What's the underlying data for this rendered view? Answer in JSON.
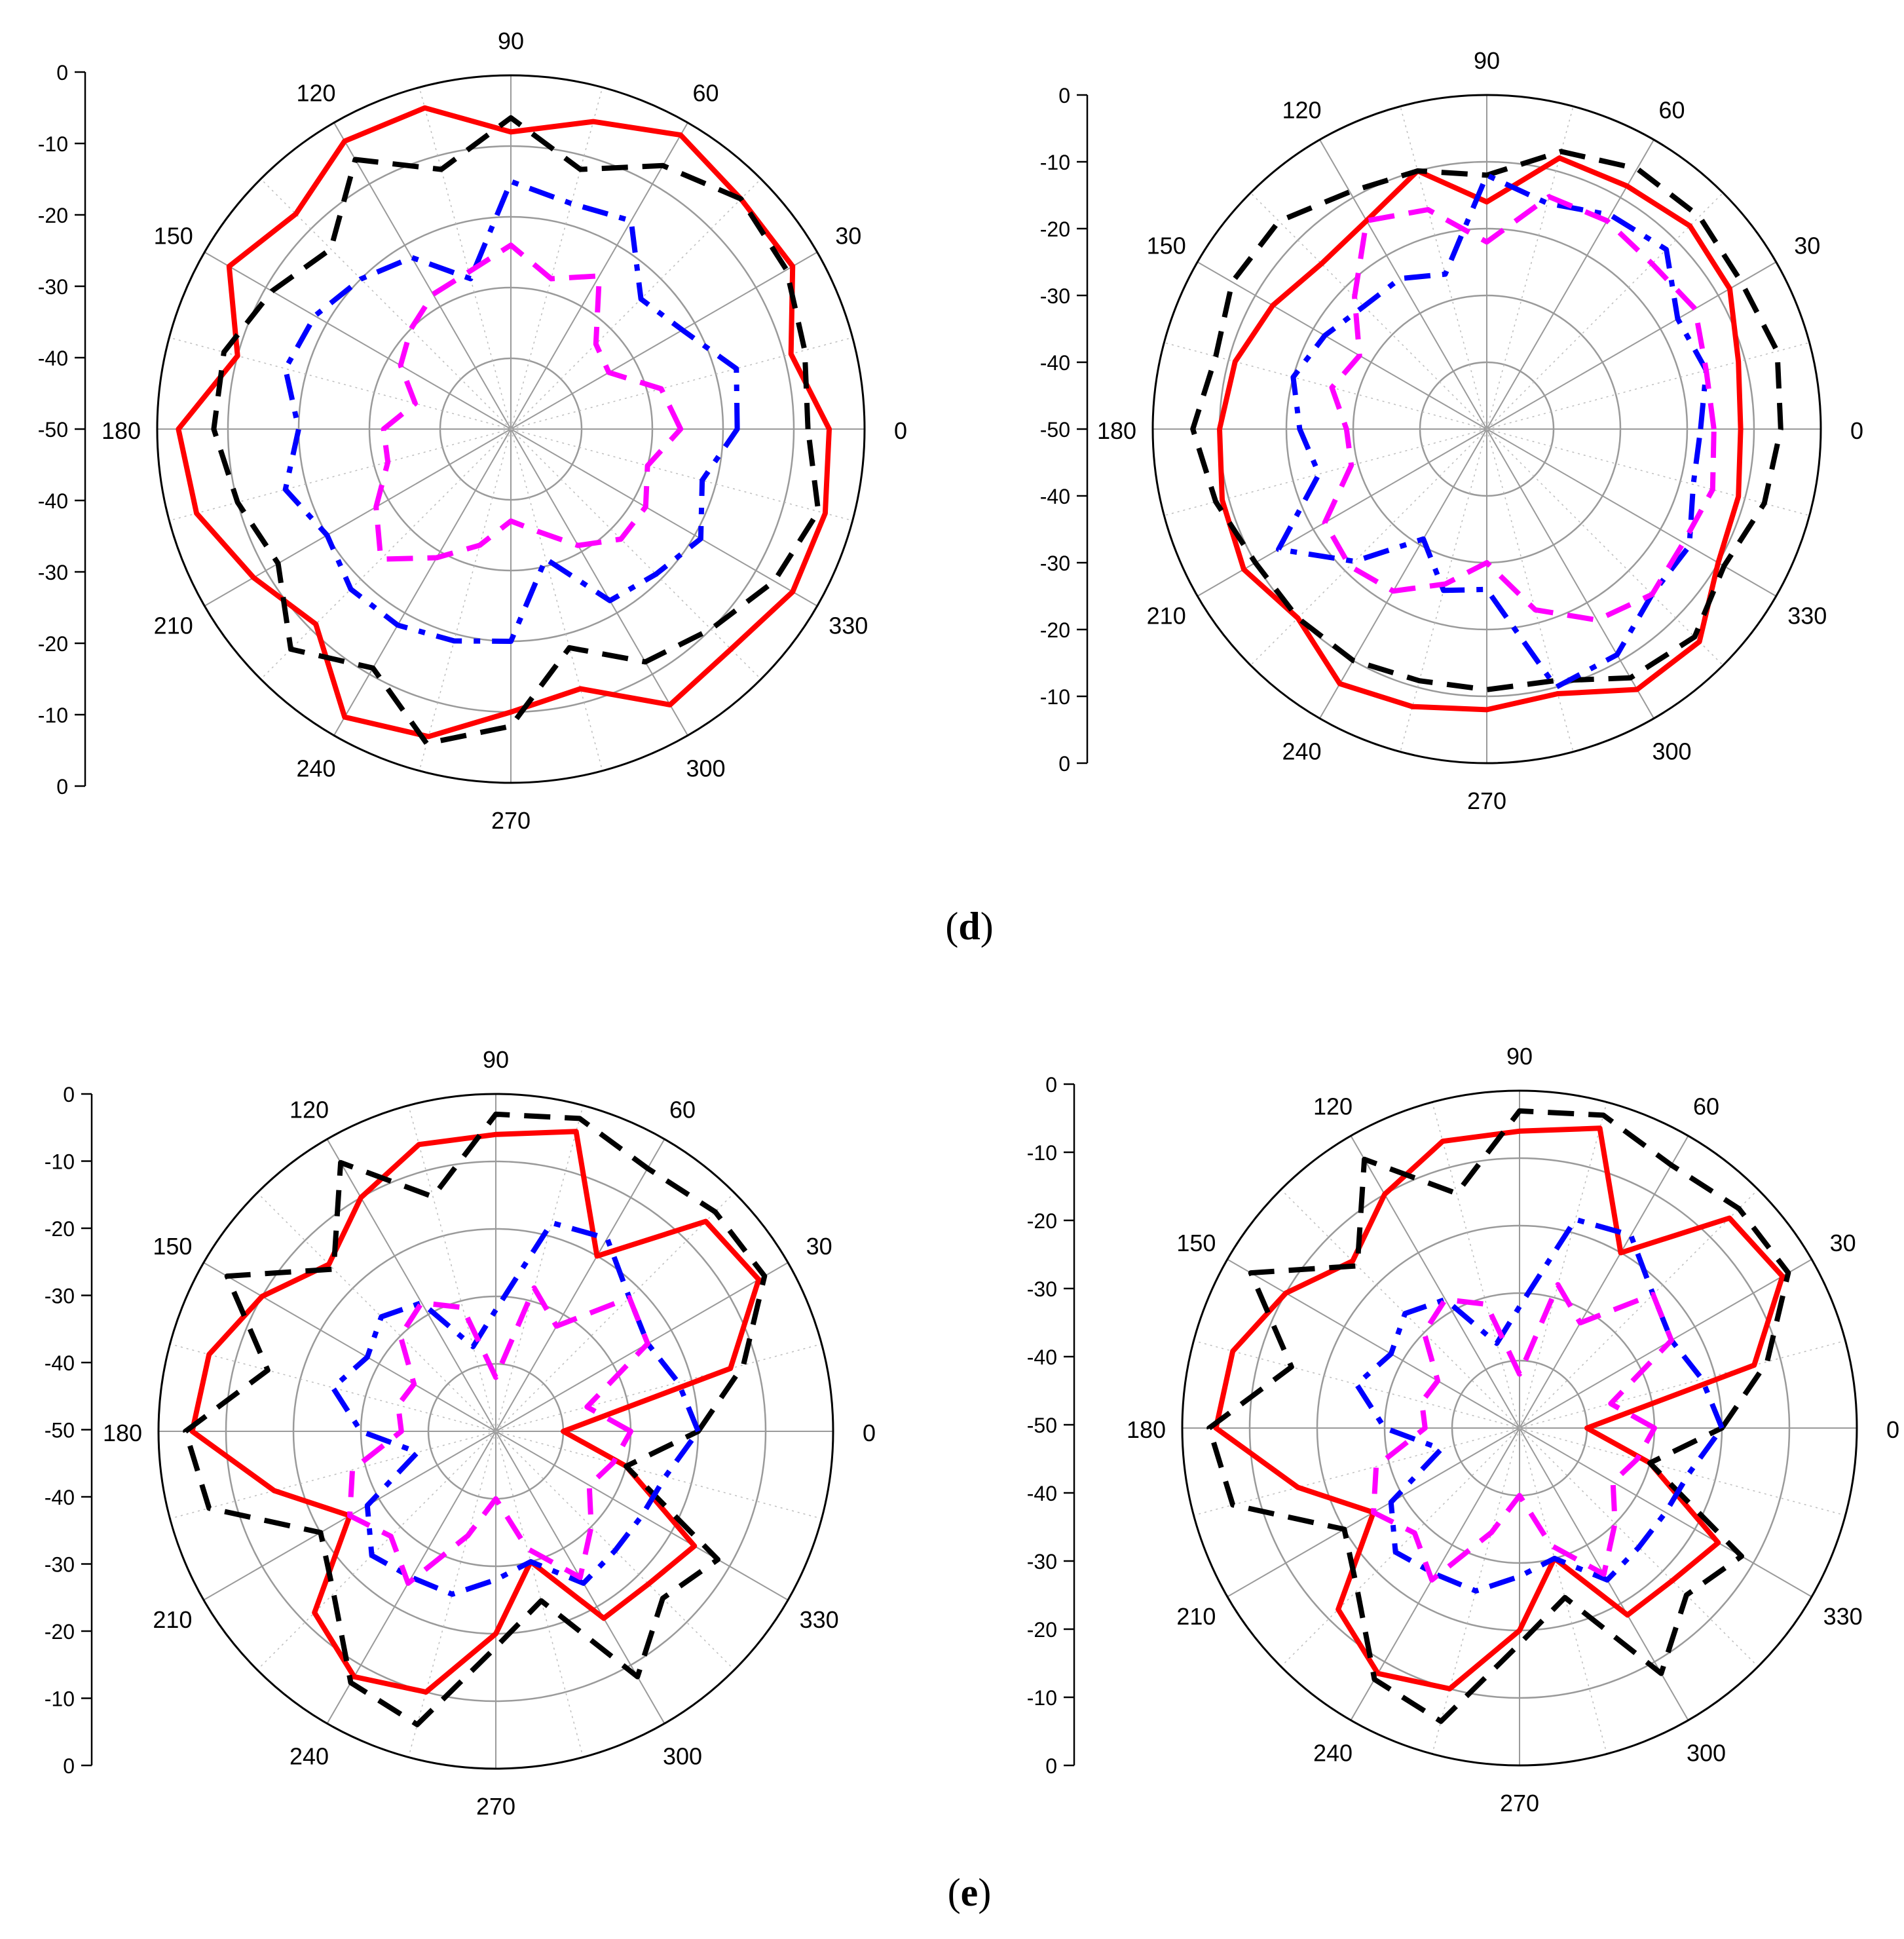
{
  "figure": {
    "captions": [
      {
        "open": "(",
        "letter": "d",
        "close": ")"
      },
      {
        "open": "(",
        "letter": "e",
        "close": ")"
      }
    ]
  },
  "chart_data": [
    {
      "type": "polar-line",
      "panel": "d",
      "radial_scale": {
        "min": -50,
        "max": 0,
        "ticks": [
          0,
          -10,
          -20,
          -30,
          -40,
          -50,
          -40,
          -30,
          -20,
          -10,
          0
        ]
      },
      "angle_ticks": [
        "0",
        "30",
        "60",
        "90",
        "120",
        "150",
        "180",
        "210",
        "240",
        "270",
        "300",
        "330"
      ],
      "grid": true,
      "series": [
        {
          "color": "#ff0000",
          "dash": "solid",
          "angles": [
            0,
            15,
            30,
            45,
            60,
            75,
            90,
            105,
            120,
            135,
            150,
            165,
            180,
            195,
            210,
            225,
            240,
            255,
            270,
            285,
            300,
            315,
            330,
            345
          ],
          "values": [
            -5,
            -9,
            -4,
            -4,
            -2,
            -5,
            -8,
            -3,
            -3,
            -7,
            -4,
            -10,
            -3,
            -4,
            -8,
            -11,
            -3,
            -5,
            -10,
            -12,
            -5,
            -6,
            -4,
            -4
          ]
        },
        {
          "color": "#000000",
          "dash": "dash",
          "angles": [
            0,
            15,
            30,
            45,
            60,
            75,
            90,
            105,
            120,
            135,
            150,
            165,
            180,
            195,
            210,
            225,
            240,
            255,
            270,
            285,
            300,
            315,
            330,
            345
          ],
          "values": [
            -8,
            -7,
            -5,
            -4,
            -7,
            -12,
            -6,
            -12,
            -6,
            -14,
            -11,
            -8,
            -8,
            -10,
            -12,
            -6,
            -11,
            -4,
            -8,
            -18,
            -12,
            -10,
            -7,
            -5
          ]
        },
        {
          "color": "#0000ff",
          "dash": "dashdot",
          "angles": [
            0,
            15,
            30,
            45,
            60,
            75,
            90,
            105,
            120,
            135,
            150,
            165,
            180,
            195,
            210,
            225,
            240,
            255,
            270,
            285,
            300,
            315,
            330,
            345
          ],
          "values": [
            -18,
            -17,
            -22,
            -24,
            -16,
            -17,
            -15,
            -28,
            -22,
            -20,
            -18,
            -17,
            -20,
            -17,
            -20,
            -18,
            -18,
            -19,
            -20,
            -31,
            -22,
            -21,
            -19,
            -22
          ]
        },
        {
          "color": "#ff00ff",
          "dash": "dash",
          "angles": [
            0,
            15,
            30,
            45,
            60,
            75,
            90,
            105,
            120,
            135,
            150,
            165,
            180,
            195,
            210,
            225,
            240,
            255,
            270,
            285,
            300,
            315,
            330,
            345
          ],
          "values": [
            -26,
            -28,
            -34,
            -33,
            -25,
            -28,
            -24,
            -27,
            -28,
            -30,
            -32,
            -36,
            -32,
            -32,
            -28,
            -24,
            -29,
            -33,
            -37,
            -35,
            -31,
            -28,
            -28,
            -30
          ]
        }
      ]
    },
    {
      "type": "polar-line",
      "panel": "d",
      "radial_scale": {
        "min": -50,
        "max": 0,
        "ticks": [
          0,
          -10,
          -20,
          -30,
          -40,
          -50,
          -40,
          -30,
          -20,
          -10,
          0
        ]
      },
      "angle_ticks": [
        "0",
        "30",
        "60",
        "90",
        "120",
        "150",
        "180",
        "210",
        "240",
        "270",
        "300",
        "330"
      ],
      "grid": true,
      "series": [
        {
          "color": "#ff0000",
          "dash": "solid",
          "angles": [
            0,
            15,
            30,
            45,
            60,
            75,
            90,
            105,
            120,
            135,
            150,
            165,
            180,
            195,
            210,
            225,
            240,
            255,
            270,
            285,
            300,
            315,
            330,
            345
          ],
          "values": [
            -12,
            -11,
            -8,
            -7,
            -8,
            -8,
            -16,
            -10,
            -14,
            -15,
            -13,
            -11,
            -10,
            -9,
            -8,
            -10,
            -6,
            -7,
            -8,
            -9,
            -5,
            -5,
            -10,
            -11
          ]
        },
        {
          "color": "#000000",
          "dash": "dash",
          "angles": [
            0,
            15,
            30,
            45,
            60,
            75,
            90,
            105,
            120,
            135,
            150,
            165,
            180,
            195,
            210,
            225,
            240,
            255,
            270,
            285,
            300,
            315,
            330,
            345
          ],
          "values": [
            -6,
            -5,
            -6,
            -5,
            -5,
            -7,
            -12,
            -10,
            -9,
            -6,
            -6,
            -8,
            -6,
            -8,
            -10,
            -10,
            -10,
            -11,
            -11,
            -11,
            -7,
            -6,
            -9,
            -7
          ]
        },
        {
          "color": "#0000ff",
          "dash": "dashdot",
          "angles": [
            0,
            15,
            30,
            45,
            60,
            75,
            90,
            105,
            120,
            135,
            150,
            165,
            180,
            195,
            210,
            225,
            240,
            255,
            270,
            285,
            300,
            315,
            330,
            345
          ],
          "values": [
            -18,
            -16,
            -17,
            -12,
            -13,
            -15,
            -12,
            -26,
            -24,
            -24,
            -22,
            -20,
            -22,
            -24,
            -14,
            -22,
            -31,
            -25,
            -26,
            -10,
            -11,
            -15,
            -15,
            -18
          ]
        },
        {
          "color": "#ff00ff",
          "dash": "dash",
          "angles": [
            0,
            15,
            30,
            45,
            60,
            75,
            90,
            105,
            120,
            135,
            150,
            165,
            180,
            195,
            210,
            225,
            240,
            255,
            270,
            285,
            300,
            315,
            330,
            345
          ],
          "values": [
            -16,
            -16,
            -14,
            -15,
            -14,
            -14,
            -22,
            -16,
            -14,
            -22,
            -28,
            -26,
            -29,
            -29,
            -22,
            -21,
            -22,
            -26,
            -30,
            -22,
            -17,
            -15,
            -16,
            -15
          ]
        }
      ]
    },
    {
      "type": "polar-line",
      "panel": "e",
      "radial_scale": {
        "min": -50,
        "max": 0,
        "ticks": [
          0,
          -10,
          -20,
          -30,
          -40,
          -50,
          -40,
          -30,
          -20,
          -10,
          0
        ]
      },
      "angle_ticks": [
        "0",
        "30",
        "60",
        "90",
        "120",
        "150",
        "180",
        "210",
        "240",
        "270",
        "300",
        "330"
      ],
      "grid": true,
      "series": [
        {
          "color": "#ff0000",
          "dash": "solid",
          "angles": [
            0,
            15,
            30,
            45,
            60,
            75,
            90,
            105,
            120,
            135,
            150,
            165,
            180,
            195,
            210,
            225,
            240,
            255,
            270,
            285,
            300,
            315,
            330,
            345
          ],
          "values": [
            -40,
            -14,
            -5,
            -6,
            -20,
            -4,
            -6,
            -6,
            -10,
            -15,
            -10,
            -6,
            -5,
            -16,
            -25,
            -12,
            -8,
            -10,
            -20,
            -30,
            -18,
            -18,
            -16,
            -30
          ]
        },
        {
          "color": "#000000",
          "dash": "dash",
          "angles": [
            0,
            15,
            30,
            45,
            60,
            75,
            90,
            105,
            120,
            135,
            150,
            165,
            180,
            195,
            210,
            225,
            240,
            255,
            270,
            285,
            300,
            315,
            330,
            345
          ],
          "values": [
            -20,
            -12,
            -4,
            -4,
            -5,
            -2,
            -3,
            -14,
            -4,
            -16,
            -4,
            -15,
            -4,
            -6,
            -20,
            -16,
            -7,
            -5,
            -18,
            -24,
            -8,
            -15,
            -12,
            -30
          ]
        },
        {
          "color": "#0000ff",
          "dash": "dashdot",
          "angles": [
            0,
            15,
            30,
            45,
            60,
            75,
            90,
            105,
            120,
            135,
            150,
            165,
            180,
            195,
            210,
            225,
            240,
            255,
            270,
            285,
            300,
            315,
            330,
            345
          ],
          "values": [
            -20,
            -22,
            -24,
            -22,
            -17,
            -18,
            -32,
            -37,
            -28,
            -26,
            -28,
            -25,
            -30,
            -38,
            -28,
            -24,
            -25,
            -25,
            -28,
            -30,
            -24,
            -25,
            -25,
            -24
          ]
        },
        {
          "color": "#ff00ff",
          "dash": "dash",
          "angles": [
            0,
            15,
            30,
            45,
            60,
            75,
            90,
            105,
            120,
            135,
            150,
            165,
            180,
            195,
            210,
            225,
            240,
            255,
            270,
            285,
            300,
            315,
            330,
            345
          ],
          "values": [
            -30,
            -36,
            -24,
            -22,
            -32,
            -28,
            -42,
            -31,
            -28,
            -30,
            -36,
            -35,
            -36,
            -28,
            -25,
            -28,
            -24,
            -34,
            -40,
            -32,
            -25,
            -30,
            -34,
            -32
          ]
        }
      ]
    },
    {
      "type": "polar-line",
      "panel": "e",
      "radial_scale": {
        "min": -50,
        "max": 0,
        "ticks": [
          0,
          -10,
          -20,
          -30,
          -40,
          -50,
          -40,
          -30,
          -20,
          -10,
          0
        ]
      },
      "angle_ticks": [
        "0",
        "30",
        "60",
        "90",
        "120",
        "150",
        "180",
        "210",
        "240",
        "270",
        "300",
        "330"
      ],
      "grid": true,
      "series": [
        {
          "color": "#ff0000",
          "dash": "solid",
          "angles": [
            0,
            15,
            30,
            45,
            60,
            75,
            90,
            105,
            120,
            135,
            150,
            165,
            180,
            195,
            210,
            225,
            240,
            255,
            270,
            285,
            300,
            315,
            330,
            345
          ],
          "values": [
            -40,
            -14,
            -5,
            -6,
            -20,
            -4,
            -6,
            -6,
            -10,
            -15,
            -10,
            -6,
            -5,
            -16,
            -25,
            -12,
            -8,
            -10,
            -20,
            -30,
            -18,
            -18,
            -16,
            -30
          ]
        },
        {
          "color": "#000000",
          "dash": "dash",
          "angles": [
            0,
            15,
            30,
            45,
            60,
            75,
            90,
            105,
            120,
            135,
            150,
            165,
            180,
            195,
            210,
            225,
            240,
            255,
            270,
            285,
            300,
            315,
            330,
            345
          ],
          "values": [
            -20,
            -12,
            -4,
            -4,
            -5,
            -2,
            -3,
            -14,
            -4,
            -16,
            -4,
            -15,
            -4,
            -6,
            -20,
            -16,
            -7,
            -5,
            -18,
            -24,
            -8,
            -15,
            -12,
            -30
          ]
        },
        {
          "color": "#0000ff",
          "dash": "dashdot",
          "angles": [
            0,
            15,
            30,
            45,
            60,
            75,
            90,
            105,
            120,
            135,
            150,
            165,
            180,
            195,
            210,
            225,
            240,
            255,
            270,
            285,
            300,
            315,
            330,
            345
          ],
          "values": [
            -20,
            -22,
            -24,
            -22,
            -17,
            -18,
            -32,
            -37,
            -28,
            -26,
            -28,
            -25,
            -30,
            -38,
            -28,
            -24,
            -25,
            -25,
            -28,
            -30,
            -24,
            -25,
            -25,
            -24
          ]
        },
        {
          "color": "#ff00ff",
          "dash": "dash",
          "angles": [
            0,
            15,
            30,
            45,
            60,
            75,
            90,
            105,
            120,
            135,
            150,
            165,
            180,
            195,
            210,
            225,
            240,
            255,
            270,
            285,
            300,
            315,
            330,
            345
          ],
          "values": [
            -30,
            -36,
            -24,
            -22,
            -32,
            -28,
            -42,
            -31,
            -28,
            -30,
            -36,
            -35,
            -36,
            -28,
            -25,
            -28,
            -24,
            -34,
            -40,
            -32,
            -25,
            -30,
            -34,
            -32
          ]
        }
      ]
    }
  ]
}
